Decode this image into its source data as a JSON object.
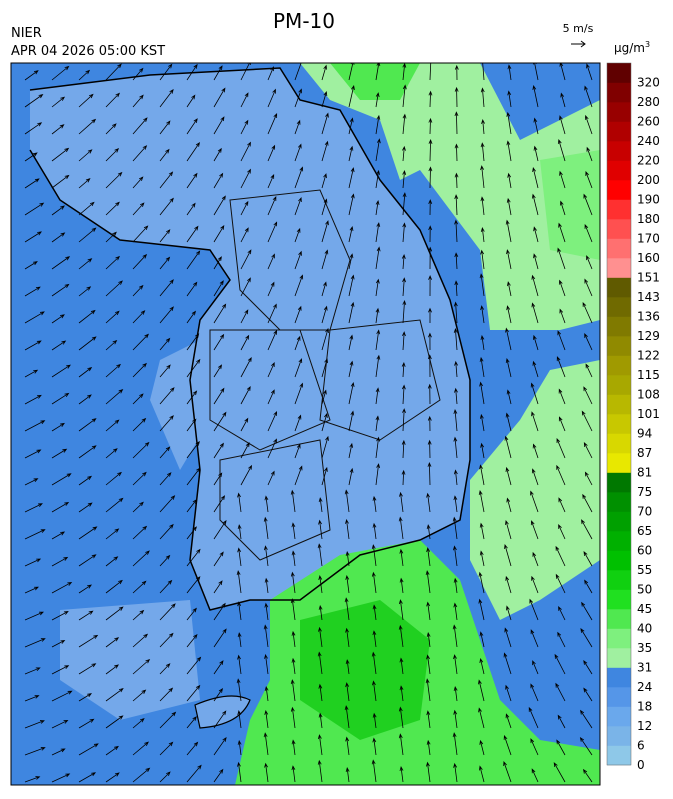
{
  "header": {
    "agency": "NIER",
    "title": "PM-10",
    "timestamp": "APR 04 2026 05:00 KST"
  },
  "wind_reference": {
    "label": "5 m/s"
  },
  "colorbar": {
    "unit": "μg/m",
    "unit_sup": "3",
    "levels": [
      0,
      6,
      12,
      18,
      24,
      31,
      35,
      40,
      45,
      50,
      55,
      60,
      65,
      70,
      75,
      81,
      87,
      94,
      101,
      108,
      115,
      122,
      129,
      136,
      143,
      151,
      160,
      170,
      180,
      190,
      200,
      220,
      240,
      260,
      280,
      320
    ],
    "colors": [
      "#8ec8e8",
      "#7ab4e8",
      "#6aa8ec",
      "#5596e8",
      "#3f86e0",
      "#a0f0a0",
      "#7ef07e",
      "#50e850",
      "#20e020",
      "#10d010",
      "#00c000",
      "#00b000",
      "#00a000",
      "#009000",
      "#007800",
      "#e8e800",
      "#d8d800",
      "#c8c800",
      "#b8b800",
      "#a8a800",
      "#a09a00",
      "#908a00",
      "#807a00",
      "#706a00",
      "#605a00",
      "#ff9090",
      "#ff7070",
      "#ff5050",
      "#ff3030",
      "#ff0000",
      "#e00000",
      "#c80000",
      "#b00000",
      "#980000",
      "#800000",
      "#600000"
    ]
  }
}
